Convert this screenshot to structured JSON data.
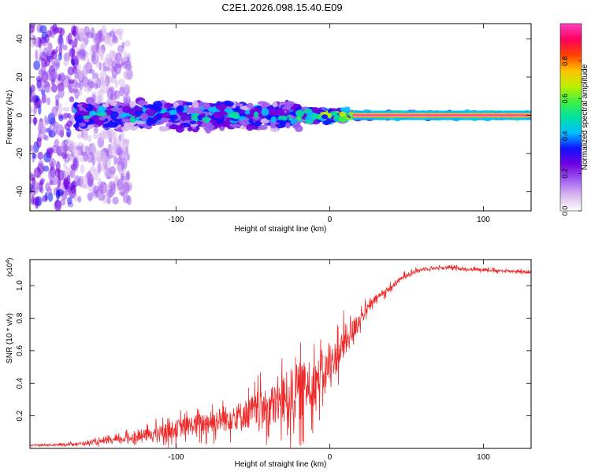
{
  "title": "C2E1.2026.098.15.40.E09",
  "chart_data": [
    {
      "type": "heatmap",
      "xlabel": "Height of straight line (km)",
      "ylabel": "Frequency (Hz)",
      "xlim": [
        -195,
        131
      ],
      "ylim": [
        -50,
        48
      ],
      "x_ticks": [
        -100,
        0,
        100
      ],
      "x_tick_labels": [
        "-100",
        "0",
        "100"
      ],
      "y_ticks": [
        -40,
        -20,
        0,
        20,
        40
      ],
      "y_tick_labels": [
        "-40",
        "-20",
        "0",
        "20",
        "40"
      ],
      "colorbar": {
        "label": "Normalized spectral amplitude",
        "range": [
          0,
          1
        ],
        "ticks": [
          0.0,
          0.2,
          0.4,
          0.6,
          0.8
        ],
        "tick_labels": [
          "0.0",
          "0.2",
          "0.4",
          "0.6",
          "0.8"
        ],
        "colors": [
          "#ffffff",
          "#d8b8f0",
          "#a05cf0",
          "#7000e0",
          "#1010ff",
          "#00c0ff",
          "#00e0a0",
          "#40f040",
          "#c0f000",
          "#ffc000",
          "#ff4000",
          "#ff0060",
          "#ff40c0"
        ]
      },
      "band_center_hz": 0,
      "regions": [
        {
          "x_range": [
            -195,
            -165
          ],
          "description_amplitude": 0.25,
          "freq_spread_hz": 48
        },
        {
          "x_range": [
            -165,
            -130
          ],
          "description_amplitude": 0.15,
          "freq_spread_hz": 45
        },
        {
          "x_range": [
            -165,
            -20
          ],
          "description_amplitude": 0.45,
          "freq_spread_hz": 8
        },
        {
          "x_range": [
            -20,
            15
          ],
          "description_amplitude": 0.7,
          "freq_spread_hz": 4
        },
        {
          "x_range": [
            15,
            131
          ],
          "description_amplitude": 0.95,
          "freq_spread_hz": 1.5
        }
      ]
    },
    {
      "type": "line",
      "xlabel": "Height of straight line (km)",
      "ylabel": "SNR (10 * v/v)",
      "y_exponent_label": "(x10",
      "y_exponent_power": "4",
      "y_exponent_close": ")",
      "xlim": [
        -195,
        131
      ],
      "ylim": [
        0,
        1.16
      ],
      "x_ticks": [
        -100,
        0,
        100
      ],
      "x_tick_labels": [
        "-100",
        "0",
        "100"
      ],
      "y_ticks": [
        0.2,
        0.4,
        0.6,
        0.8,
        1.0
      ],
      "y_tick_labels": [
        "0.2",
        "0.4",
        "0.6",
        "0.8",
        "1.0"
      ],
      "color": "#ee2a2a",
      "x": [
        -195,
        -180,
        -160,
        -140,
        -120,
        -100,
        -80,
        -60,
        -40,
        -30,
        -20,
        -10,
        0,
        10,
        20,
        30,
        40,
        50,
        60,
        70,
        80,
        90,
        100,
        110,
        120,
        131
      ],
      "y": [
        0.02,
        0.02,
        0.03,
        0.05,
        0.08,
        0.12,
        0.16,
        0.2,
        0.25,
        0.3,
        0.35,
        0.4,
        0.5,
        0.65,
        0.8,
        0.92,
        0.99,
        1.07,
        1.1,
        1.11,
        1.11,
        1.1,
        1.1,
        1.09,
        1.09,
        1.08
      ],
      "noise_amp": [
        0.01,
        0.01,
        0.02,
        0.04,
        0.08,
        0.12,
        0.15,
        0.18,
        0.25,
        0.35,
        0.4,
        0.3,
        0.25,
        0.22,
        0.1,
        0.05,
        0.04,
        0.03,
        0.02,
        0.02,
        0.02,
        0.02,
        0.02,
        0.02,
        0.02,
        0.02
      ]
    }
  ]
}
